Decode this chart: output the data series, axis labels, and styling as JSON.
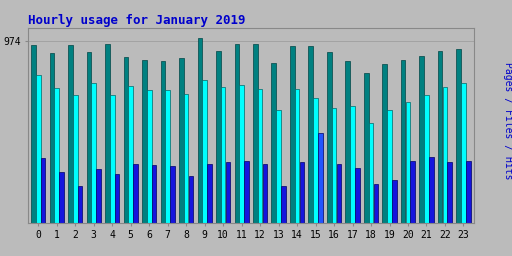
{
  "title": "Hourly usage for January 2019",
  "hours": [
    0,
    1,
    2,
    3,
    4,
    5,
    6,
    7,
    8,
    9,
    10,
    11,
    12,
    13,
    14,
    15,
    16,
    17,
    18,
    19,
    20,
    21,
    22,
    23
  ],
  "hits": [
    950,
    905,
    950,
    910,
    955,
    885,
    870,
    865,
    880,
    990,
    920,
    955,
    955,
    855,
    945,
    945,
    910,
    865,
    800,
    850,
    870,
    890,
    920,
    930
  ],
  "files": [
    790,
    720,
    685,
    745,
    685,
    730,
    710,
    710,
    690,
    765,
    725,
    735,
    715,
    605,
    715,
    665,
    615,
    625,
    535,
    605,
    645,
    685,
    725,
    745
  ],
  "pages": [
    345,
    272,
    198,
    288,
    262,
    312,
    307,
    302,
    252,
    312,
    327,
    332,
    312,
    198,
    322,
    482,
    312,
    292,
    207,
    228,
    332,
    352,
    322,
    332
  ],
  "hits_color": "#008080",
  "files_color": "#00ffff",
  "pages_color": "#1515dd",
  "pages_highlight_color": "#2255ff",
  "pages_highlight": [
    15
  ],
  "hits_edge": "#004444",
  "files_edge": "#006666",
  "pages_edge": "#000066",
  "bg_color": "#bbbbbb",
  "title_color": "#0000cc",
  "ylim_max": 1040,
  "yline": 974,
  "bar_width": 0.26,
  "ylabel_text": "Pages / Files / Hits"
}
